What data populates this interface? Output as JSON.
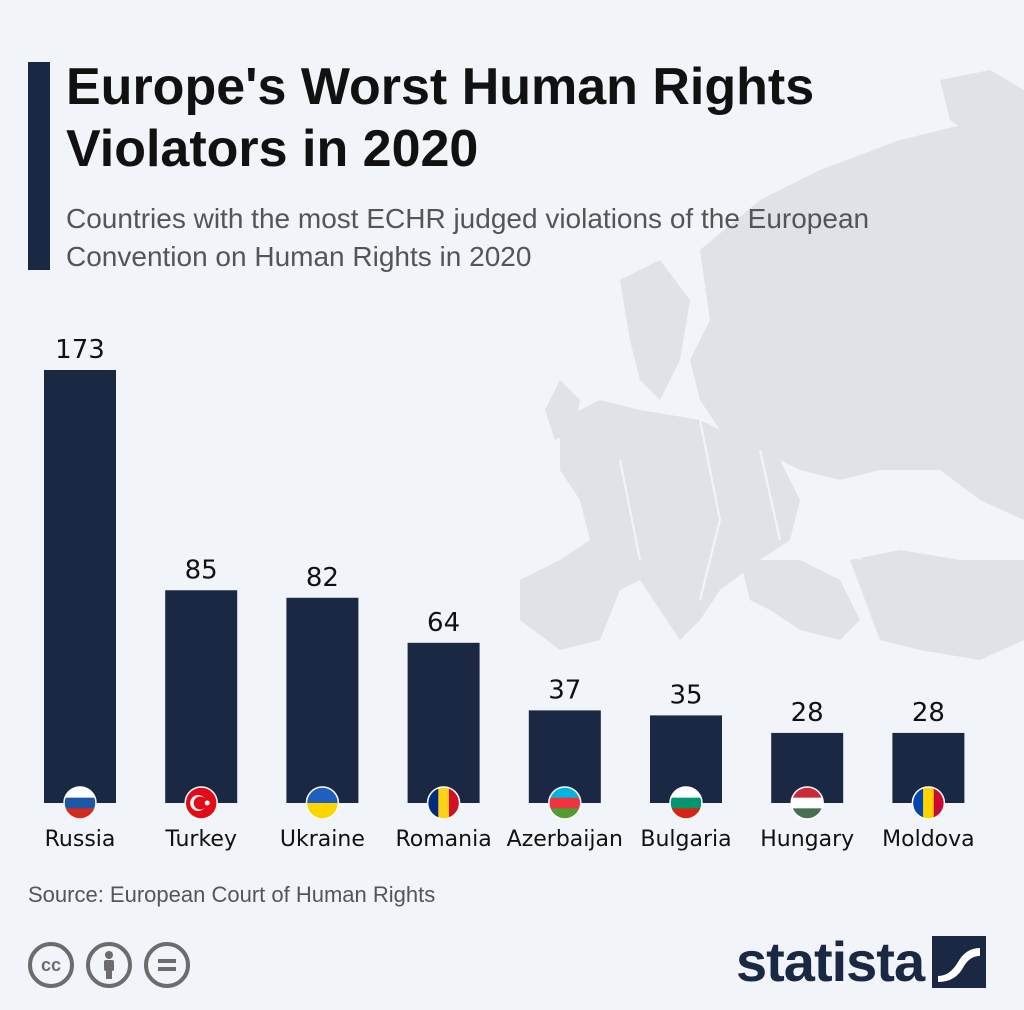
{
  "header": {
    "title": "Europe's Worst Human Rights Violators in 2020",
    "subtitle": "Countries with the most ECHR judged violations of the European Convention on Human Rights in 2020"
  },
  "chart_data": {
    "type": "bar",
    "title": "Europe's Worst Human Rights Violators in 2020",
    "subtitle": "Countries with the most ECHR judged violations of the European Convention on Human Rights in 2020",
    "categories": [
      "Russia",
      "Turkey",
      "Ukraine",
      "Romania",
      "Azerbaijan",
      "Bulgaria",
      "Hungary",
      "Moldova"
    ],
    "values": [
      173,
      85,
      82,
      64,
      37,
      35,
      28,
      28
    ],
    "xlabel": "",
    "ylabel": "",
    "ylim": [
      0,
      173
    ],
    "grid": false,
    "bar_color": "#1b2844",
    "flags": [
      {
        "country": "Russia",
        "type": "horizontal",
        "colors": [
          "#ffffff",
          "#1c57a5",
          "#d52b1e"
        ]
      },
      {
        "country": "Turkey",
        "type": "crescent",
        "colors": [
          "#e30a17",
          "#ffffff"
        ]
      },
      {
        "country": "Ukraine",
        "type": "horizontal",
        "colors": [
          "#1f5fbf",
          "#ffd500"
        ]
      },
      {
        "country": "Romania",
        "type": "vertical",
        "colors": [
          "#002b7f",
          "#fcd116",
          "#ce1126"
        ]
      },
      {
        "country": "Azerbaijan",
        "type": "horizontal",
        "colors": [
          "#00b5e2",
          "#ef3340",
          "#509e2f"
        ]
      },
      {
        "country": "Bulgaria",
        "type": "horizontal",
        "colors": [
          "#ffffff",
          "#00966e",
          "#d62612"
        ]
      },
      {
        "country": "Hungary",
        "type": "horizontal",
        "colors": [
          "#ce2939",
          "#ffffff",
          "#477050"
        ]
      },
      {
        "country": "Moldova",
        "type": "vertical",
        "colors": [
          "#0046ae",
          "#ffd200",
          "#cc092f"
        ]
      }
    ]
  },
  "footer": {
    "source": "Source: European Court of Human Rights",
    "license_icons": [
      "cc-icon",
      "attribution-icon",
      "no-derivatives-icon"
    ],
    "brand": "statista"
  }
}
